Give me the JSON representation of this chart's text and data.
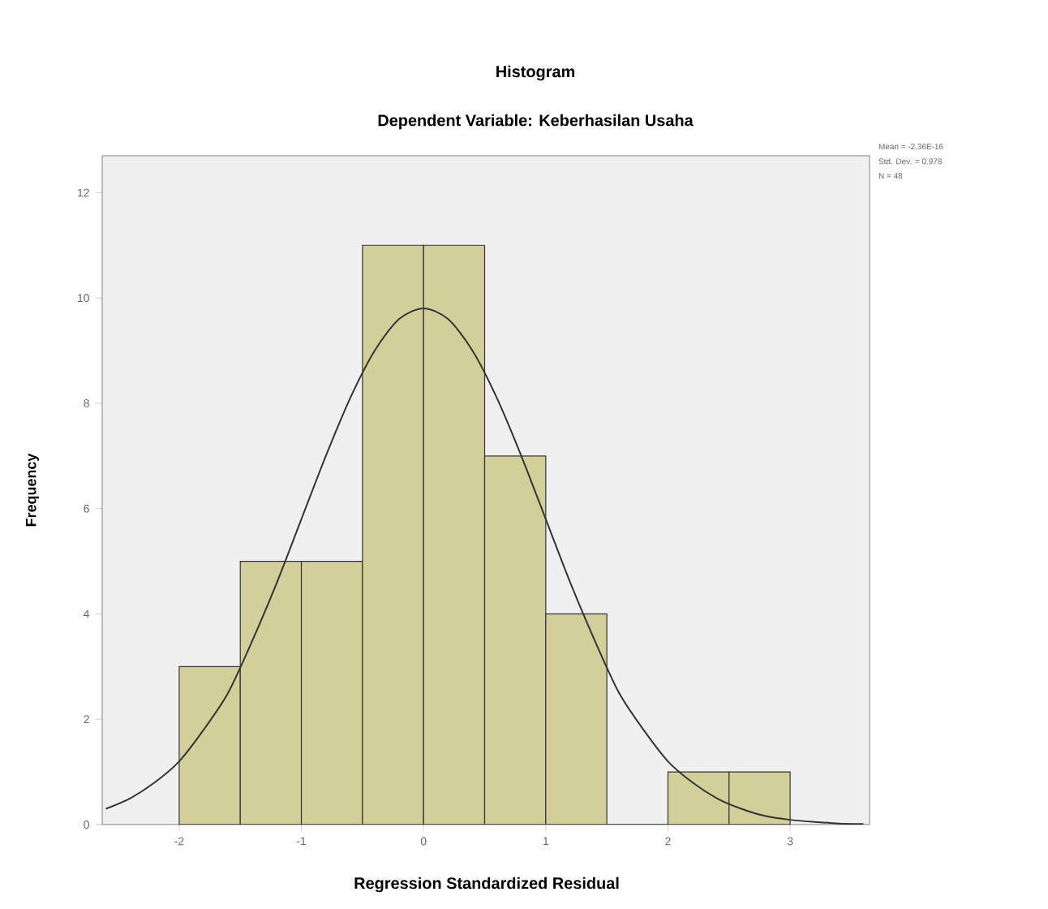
{
  "chart_data": {
    "type": "histogram",
    "title": "Histogram",
    "subtitle": "Dependent Variable: Keberhasilan Usaha",
    "xlabel": "Regression Standardized Residual",
    "ylabel": "Frequency",
    "bins": [
      -2,
      -1.5,
      -1,
      -0.5,
      0,
      0.5,
      1,
      1.5,
      2,
      2.5,
      3
    ],
    "values": [
      3,
      5,
      5,
      11,
      11,
      7,
      4,
      0,
      1,
      1
    ],
    "color": "#d3cf9b",
    "series": [
      {
        "type": "line",
        "color": "#333333",
        "x": [
          -2.6,
          -2.4,
          -2.2,
          -2,
          -1.8,
          -1.6,
          -1.4,
          -1.2,
          -1,
          -0.8,
          -0.6,
          -0.4,
          -0.2,
          0,
          0.2,
          0.4,
          0.6,
          0.8,
          1,
          1.2,
          1.4,
          1.6,
          1.8,
          2,
          2.2,
          2.4,
          2.6,
          2.8,
          3,
          3.2,
          3.4,
          3.6
        ],
        "values": [
          0.3,
          0.5,
          0.8,
          1.2,
          1.8,
          2.5,
          3.5,
          4.6,
          5.8,
          7.0,
          8.1,
          9.0,
          9.6,
          9.8,
          9.6,
          9.0,
          8.1,
          7.0,
          5.8,
          4.6,
          3.5,
          2.5,
          1.8,
          1.2,
          0.8,
          0.5,
          0.3,
          0.16,
          0.09,
          0.05,
          0.02,
          0.01
        ]
      }
    ],
    "xlim": [
      -2.63,
      3.65
    ],
    "ylim": [
      0,
      12.7
    ],
    "xticks": [
      -2,
      -1,
      0,
      1,
      2,
      3
    ],
    "yticks": [
      0,
      2,
      4,
      6,
      8,
      10,
      12
    ],
    "annotations": [
      "Mean = -2.36E-16",
      "Std. Dev. = 0.978",
      "N = 48"
    ]
  }
}
